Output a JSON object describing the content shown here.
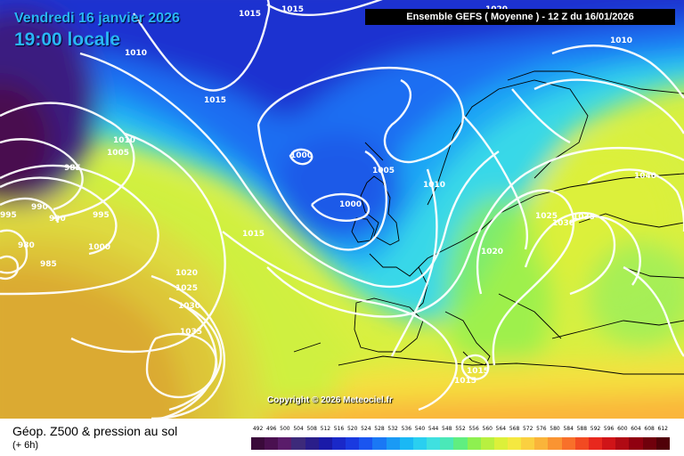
{
  "header": {
    "date": "Vendredi 16 janvier 2026",
    "time": "19:00 locale",
    "ensemble": "Ensemble GEFS  ( Moyenne )  -  12 Z du 16/01/2026"
  },
  "map": {
    "copyright": "Copyright © 2026 Meteociel.fr",
    "isobar_labels": [
      {
        "id": "iso-1015-a",
        "text": "1015"
      },
      {
        "id": "iso-1015-b",
        "text": "1015"
      },
      {
        "id": "iso-1020-a",
        "text": "1020"
      },
      {
        "id": "iso-1015-c",
        "text": "1015"
      },
      {
        "id": "iso-1010-a",
        "text": "1010"
      },
      {
        "id": "iso-1005-a",
        "text": "1005"
      },
      {
        "id": "iso-985-a",
        "text": "985"
      },
      {
        "id": "iso-990-a",
        "text": "990"
      },
      {
        "id": "iso-990-b",
        "text": "990"
      },
      {
        "id": "iso-995-a",
        "text": "995"
      },
      {
        "id": "iso-995-b",
        "text": "995"
      },
      {
        "id": "iso-980-a",
        "text": "980"
      },
      {
        "id": "iso-985-b",
        "text": "985"
      },
      {
        "id": "iso-1000-a",
        "text": "1000"
      },
      {
        "id": "iso-1015-d",
        "text": "1015"
      },
      {
        "id": "iso-1020-b",
        "text": "1020"
      },
      {
        "id": "iso-1025-a",
        "text": "1025"
      },
      {
        "id": "iso-1030-a",
        "text": "1030"
      },
      {
        "id": "iso-1035-a",
        "text": "1035"
      },
      {
        "id": "iso-1000-b",
        "text": "1000"
      },
      {
        "id": "iso-1005-b",
        "text": "1005"
      },
      {
        "id": "iso-1000-c",
        "text": "1000"
      },
      {
        "id": "iso-1010-b",
        "text": "1010"
      },
      {
        "id": "iso-1020-c",
        "text": "1020"
      },
      {
        "id": "iso-1025-b",
        "text": "1025"
      },
      {
        "id": "iso-1030-b",
        "text": "1030"
      },
      {
        "id": "iso-1035-b",
        "text": "1035"
      },
      {
        "id": "iso-1040-a",
        "text": "1040"
      },
      {
        "id": "iso-1010-c",
        "text": "1010"
      },
      {
        "id": "iso-1010-d",
        "text": "1010"
      },
      {
        "id": "iso-1015-e",
        "text": "1015"
      },
      {
        "id": "iso-1015-f",
        "text": "1015"
      }
    ]
  },
  "footer": {
    "title": "Géop. Z500 & pression au sol",
    "subtitle": "(+ 6h)"
  },
  "scale": {
    "labels": [
      "492",
      "496",
      "500",
      "504",
      "508",
      "512",
      "516",
      "520",
      "524",
      "528",
      "532",
      "536",
      "540",
      "544",
      "548",
      "552",
      "556",
      "560",
      "564",
      "568",
      "572",
      "576",
      "580",
      "584",
      "588",
      "592",
      "596",
      "600",
      "604",
      "608",
      "612"
    ],
    "colors": [
      "#3a0a3a",
      "#4a1050",
      "#5a1c6a",
      "#3d2a7a",
      "#2a1e8a",
      "#1a1aa8",
      "#1a28c8",
      "#1a3ae0",
      "#1a55f0",
      "#1a78f5",
      "#1a9af5",
      "#1ab8f5",
      "#2acff0",
      "#3fe0e0",
      "#4ae8b8",
      "#60ee80",
      "#8ef050",
      "#b8f040",
      "#dcf03a",
      "#f5e840",
      "#fad040",
      "#fab43a",
      "#fa9432",
      "#f8702a",
      "#f24a22",
      "#e8281e",
      "#d01418",
      "#b00a14",
      "#900010",
      "#70000c",
      "#500008"
    ]
  },
  "colors": {
    "header_text": "#29b6f6",
    "isobar": "#ffffff",
    "coastline": "#000000"
  }
}
